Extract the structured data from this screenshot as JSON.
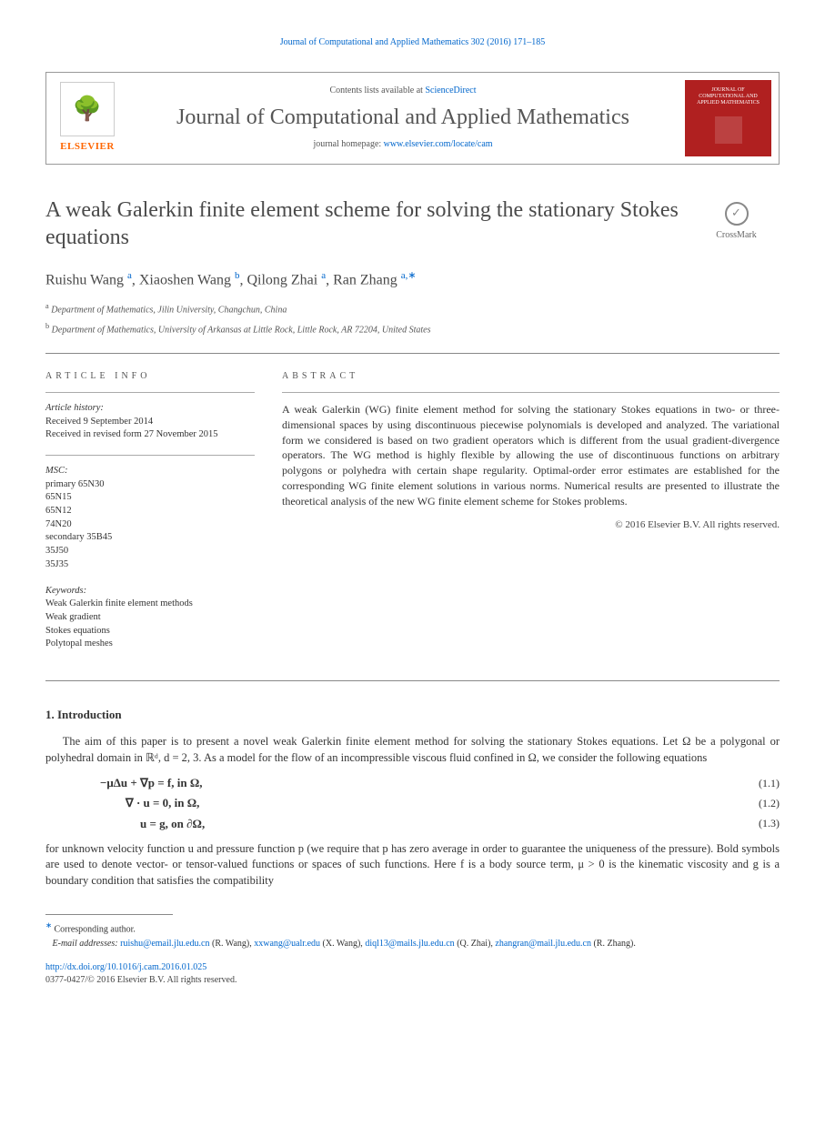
{
  "running_head": "Journal of Computational and Applied Mathematics 302 (2016) 171–185",
  "header": {
    "contents_prefix": "Contents lists available at ",
    "contents_link": "ScienceDirect",
    "journal_name": "Journal of Computational and Applied Mathematics",
    "homepage_prefix": "journal homepage: ",
    "homepage_link": "www.elsevier.com/locate/cam",
    "elsevier_brand": "ELSEVIER",
    "cover_title": "JOURNAL OF COMPUTATIONAL AND APPLIED MATHEMATICS"
  },
  "crossmark_label": "CrossMark",
  "title": "A weak Galerkin finite element scheme for solving the stationary Stokes equations",
  "authors": [
    {
      "name": "Ruishu Wang",
      "aff": "a"
    },
    {
      "name": "Xiaoshen Wang",
      "aff": "b"
    },
    {
      "name": "Qilong Zhai",
      "aff": "a"
    },
    {
      "name": "Ran Zhang",
      "aff": "a",
      "corr": true
    }
  ],
  "affiliations": {
    "a": "Department of Mathematics, Jilin University, Changchun, China",
    "b": "Department of Mathematics, University of Arkansas at Little Rock, Little Rock, AR 72204, United States"
  },
  "info": {
    "heading": "article info",
    "history_label": "Article history:",
    "history_lines": [
      "Received 9 September 2014",
      "Received in revised form 27 November 2015"
    ],
    "msc_label": "MSC:",
    "msc_lines": [
      "primary 65N30",
      "65N15",
      "65N12",
      "74N20",
      "secondary 35B45",
      "35J50",
      "35J35"
    ],
    "keywords_label": "Keywords:",
    "keywords": [
      "Weak Galerkin finite element methods",
      "Weak gradient",
      "Stokes equations",
      "Polytopal meshes"
    ]
  },
  "abstract": {
    "heading": "abstract",
    "text": "A weak Galerkin (WG) finite element method for solving the stationary Stokes equations in two- or three- dimensional spaces by using discontinuous piecewise polynomials is developed and analyzed. The variational form we considered is based on two gradient operators which is different from the usual gradient-divergence operators. The WG method is highly flexible by allowing the use of discontinuous functions on arbitrary polygons or polyhedra with certain shape regularity. Optimal-order error estimates are established for the corresponding WG finite element solutions in various norms. Numerical results are presented to illustrate the theoretical analysis of the new WG finite element scheme for Stokes problems.",
    "copyright": "© 2016 Elsevier B.V. All rights reserved."
  },
  "section1": {
    "title": "1. Introduction",
    "p1": "The aim of this paper is to present a novel weak Galerkin finite element method for solving the stationary Stokes equations. Let Ω be a polygonal or polyhedral domain in ℝᵈ, d = 2, 3. As a model for the flow of an incompressible viscous fluid confined in Ω, we consider the following equations",
    "eqs": [
      {
        "math": "−μΔu + ∇p = f,   in Ω,",
        "num": "(1.1)"
      },
      {
        "math": "∇ · u = 0,   in Ω,",
        "num": "(1.2)"
      },
      {
        "math": "u = g,   on ∂Ω,",
        "num": "(1.3)"
      }
    ],
    "p2": "for unknown velocity function u and pressure function p (we require that p has zero average in order to guarantee the uniqueness of the pressure). Bold symbols are used to denote vector- or tensor-valued functions or spaces of such functions. Here f is a body source term, μ > 0 is the kinematic viscosity and g is a boundary condition that satisfies the compatibility"
  },
  "footnotes": {
    "corr": "Corresponding author.",
    "email_label": "E-mail addresses:",
    "emails": [
      {
        "addr": "ruishu@email.jlu.edu.cn",
        "who": "(R. Wang)"
      },
      {
        "addr": "xxwang@ualr.edu",
        "who": "(X. Wang)"
      },
      {
        "addr": "diql13@mails.jlu.edu.cn",
        "who": "(Q. Zhai)"
      },
      {
        "addr": "zhangran@mail.jlu.edu.cn",
        "who": "(R. Zhang)"
      }
    ]
  },
  "doi": {
    "url": "http://dx.doi.org/10.1016/j.cam.2016.01.025",
    "issn": "0377-0427/© 2016 Elsevier B.V. All rights reserved."
  },
  "colors": {
    "link": "#0066cc",
    "elsevier_orange": "#ff6600",
    "cover_red": "#b02020",
    "text": "#333333",
    "heading_gray": "#4a4a4a",
    "rule": "#888888"
  },
  "typography": {
    "body_pt": 12.5,
    "title_pt": 24,
    "journal_pt": 24,
    "authors_pt": 16,
    "small_pt": 10
  }
}
